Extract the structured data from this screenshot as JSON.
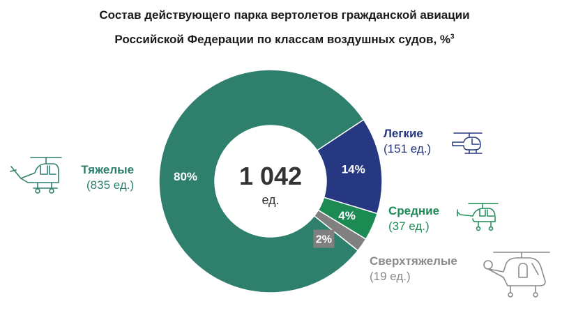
{
  "title_line1": "Состав действующего парка вертолетов гражданской авиации",
  "title_line2": "Российской Федерации по классам воздушных судов, %",
  "title_footnote": "3",
  "center": {
    "value": "1 042",
    "unit": "ед."
  },
  "labels": {
    "heavy": {
      "name": "Тяжелые",
      "count": "(835 ед.)"
    },
    "light": {
      "name": "Легкие",
      "count": "(151 ед.)"
    },
    "medium": {
      "name": "Средние",
      "count": "(37 ед.)"
    },
    "superheavy": {
      "name": "Сверхтяжелые",
      "count": "(19  ед.)"
    }
  },
  "icons": [
    "heavy-helicopter-icon",
    "light-helicopter-icon",
    "medium-helicopter-icon",
    "superheavy-helicopter-icon"
  ],
  "chart_data": {
    "type": "pie",
    "title": "Состав действующего парка вертолетов гражданской авиации Российской Федерации по классам воздушных судов, %",
    "total": 1042,
    "slices": [
      {
        "name": "Тяжелые",
        "percent": 80,
        "label": "80%",
        "count": 835,
        "color": "#2f7f6d"
      },
      {
        "name": "Легкие",
        "percent": 14,
        "label": "14%",
        "count": 151,
        "color": "#263881"
      },
      {
        "name": "Средние",
        "percent": 4,
        "label": "4%",
        "count": 37,
        "color": "#1b8a53"
      },
      {
        "name": "Сверхтяжелые",
        "percent": 2,
        "label": "2%",
        "count": 19,
        "color": "#808080"
      }
    ]
  }
}
